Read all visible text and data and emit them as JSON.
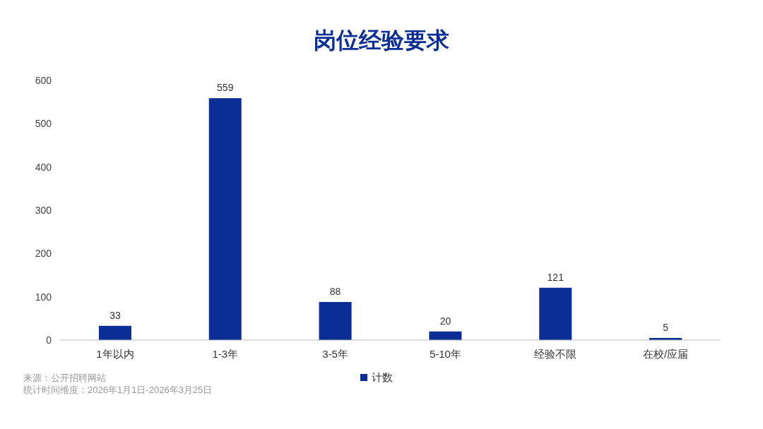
{
  "chart_data": {
    "type": "bar",
    "title": "岗位经验要求",
    "categories": [
      "1年以内",
      "1-3年",
      "3-5年",
      "5-10年",
      "经验不限",
      "在校/应届"
    ],
    "series": [
      {
        "name": "计数",
        "color": "#0a2d96",
        "values": [
          33,
          559,
          88,
          20,
          121,
          5
        ]
      }
    ],
    "ylim": [
      0,
      600
    ],
    "yticks": [
      0,
      100,
      200,
      300,
      400,
      500,
      600
    ],
    "data_labels": true,
    "legend": "bottom",
    "annotations": [
      "来源：公开招聘网站",
      "统计时间维度：2026年1月1日-2026年3月25日"
    ]
  }
}
